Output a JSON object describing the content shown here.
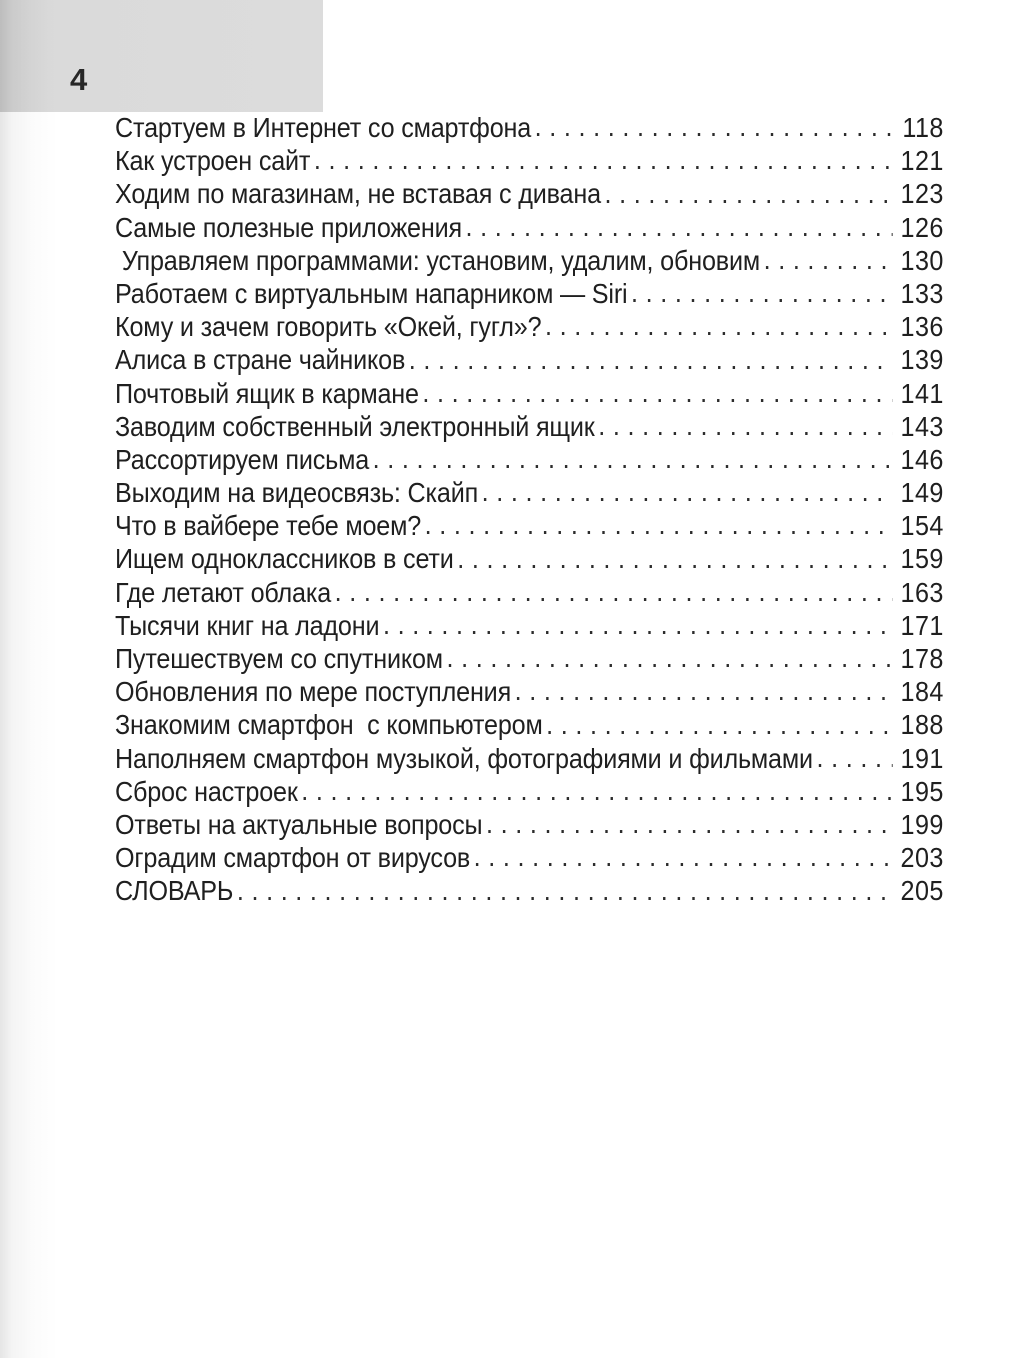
{
  "page": {
    "number": "4"
  },
  "toc": {
    "entries": [
      {
        "title": "Стартуем в Интернет со смартфона",
        "page": "118"
      },
      {
        "title": "Как устроен сайт",
        "page": "121"
      },
      {
        "title": "Ходим по магазинам, не вставая с дивана",
        "page": "123"
      },
      {
        "title": "Самые полезные приложения",
        "page": "126"
      },
      {
        "title": " Управляем программами: установим, удалим, обновим",
        "page": "130"
      },
      {
        "title": "Работаем с виртуальным напарником — Siri",
        "page": "133"
      },
      {
        "title": "Кому и зачем говорить «Окей, гугл»?",
        "page": "136"
      },
      {
        "title": "Алиса в стране чайников",
        "page": "139"
      },
      {
        "title": "Почтовый ящик в кармане",
        "page": "141"
      },
      {
        "title": "Заводим собственный электронный ящик",
        "page": "143"
      },
      {
        "title": "Рассортируем письма",
        "page": "146"
      },
      {
        "title": "Выходим на видеосвязь: Скайп",
        "page": "149"
      },
      {
        "title": "Что в вайбере тебе моем?",
        "page": "154"
      },
      {
        "title": "Ищем одноклассников в сети",
        "page": "159"
      },
      {
        "title": "Где летают облака",
        "page": "163"
      },
      {
        "title": "Тысячи книг на ладони",
        "page": "171"
      },
      {
        "title": "Путешествуем со спутником",
        "page": "178"
      },
      {
        "title": "Обновления по мере поступления",
        "page": "184"
      },
      {
        "title": "Знакомим смартфон  с компьютером",
        "page": "188"
      },
      {
        "title": "Наполняем смартфон музыкой, фотографиями и фильмами",
        "page": "191"
      },
      {
        "title": "Сброс настроек",
        "page": "195"
      },
      {
        "title": "Ответы на актуальные вопросы",
        "page": "199"
      },
      {
        "title": "Оградим смартфон от вирусов",
        "page": "203"
      },
      {
        "title": "СЛОВАРЬ",
        "page": "205"
      }
    ]
  }
}
